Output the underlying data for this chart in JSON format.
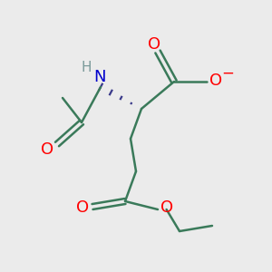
{
  "bg_color": "#ebebeb",
  "bond_color": "#3a7a5a",
  "atom_colors": {
    "O": "#ff0000",
    "N": "#0000cc",
    "H": "#7a9a9a",
    "C": "#3a7a5a"
  },
  "line_width": 1.8,
  "wedge_bond_color": "#3a3a8a",
  "font_size": 13
}
